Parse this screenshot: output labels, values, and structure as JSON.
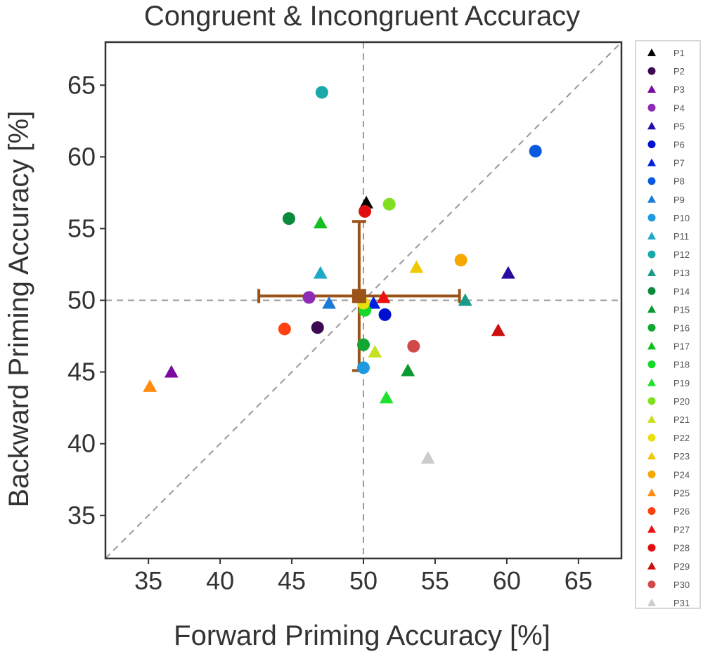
{
  "chart_data": {
    "type": "scatter",
    "title": "Congruent & Incongruent Accuracy",
    "xlabel": "Forward Priming Accuracy [%]",
    "ylabel": "Backward Priming Accuracy [%]",
    "xlim": [
      32,
      68
    ],
    "ylim": [
      32,
      68
    ],
    "xticks": [
      35,
      40,
      45,
      50,
      55,
      60,
      65
    ],
    "yticks": [
      35,
      40,
      45,
      50,
      55,
      60,
      65
    ],
    "grid": false,
    "reference_lines": {
      "vertical": 50,
      "horizontal": 50,
      "diagonal": true
    },
    "legend_position": "outside-right",
    "series": [
      {
        "name": "P1",
        "marker": "triangle",
        "color": "#000000",
        "x": 50.2,
        "y": 56.8
      },
      {
        "name": "P2",
        "marker": "circle",
        "color": "#3d0a52",
        "x": 46.8,
        "y": 48.1
      },
      {
        "name": "P3",
        "marker": "triangle",
        "color": "#7a0aa0",
        "x": 36.6,
        "y": 45.0
      },
      {
        "name": "P4",
        "marker": "circle",
        "color": "#8e2bb5",
        "x": 46.2,
        "y": 50.2
      },
      {
        "name": "P5",
        "marker": "triangle",
        "color": "#2a0aa0",
        "x": 60.1,
        "y": 51.9
      },
      {
        "name": "P6",
        "marker": "circle",
        "color": "#0010d0",
        "x": 51.5,
        "y": 49.0
      },
      {
        "name": "P7",
        "marker": "triangle",
        "color": "#0020e0",
        "x": 50.7,
        "y": 49.8
      },
      {
        "name": "P8",
        "marker": "circle",
        "color": "#0a5ae0",
        "x": 62.0,
        "y": 60.4
      },
      {
        "name": "P9",
        "marker": "triangle",
        "color": "#1a7ad8",
        "x": 47.6,
        "y": 49.8
      },
      {
        "name": "P10",
        "marker": "circle",
        "color": "#1f9ae0",
        "x": 50.0,
        "y": 45.3
      },
      {
        "name": "P11",
        "marker": "triangle",
        "color": "#20a8c8",
        "x": 47.0,
        "y": 51.9
      },
      {
        "name": "P12",
        "marker": "circle",
        "color": "#1aa8a8",
        "x": 47.1,
        "y": 64.5
      },
      {
        "name": "P13",
        "marker": "triangle",
        "color": "#1a9a88",
        "x": 57.1,
        "y": 50.0
      },
      {
        "name": "P14",
        "marker": "circle",
        "color": "#0a8a3a",
        "x": 44.8,
        "y": 55.7
      },
      {
        "name": "P15",
        "marker": "triangle",
        "color": "#0a9a30",
        "x": 53.1,
        "y": 45.1
      },
      {
        "name": "P16",
        "marker": "circle",
        "color": "#10a830",
        "x": 50.0,
        "y": 46.9
      },
      {
        "name": "P17",
        "marker": "triangle",
        "color": "#12c022",
        "x": 47.0,
        "y": 55.4
      },
      {
        "name": "P18",
        "marker": "circle",
        "color": "#16d828",
        "x": 50.1,
        "y": 49.3
      },
      {
        "name": "P19",
        "marker": "triangle",
        "color": "#20e030",
        "x": 51.6,
        "y": 43.2
      },
      {
        "name": "P20",
        "marker": "circle",
        "color": "#80e020",
        "x": 51.8,
        "y": 56.7
      },
      {
        "name": "P21",
        "marker": "triangle",
        "color": "#c8e020",
        "x": 50.8,
        "y": 46.4
      },
      {
        "name": "P22",
        "marker": "circle",
        "color": "#e8e010",
        "x": 50.0,
        "y": 49.8
      },
      {
        "name": "P23",
        "marker": "triangle",
        "color": "#f0c800",
        "x": 53.7,
        "y": 52.3
      },
      {
        "name": "P24",
        "marker": "circle",
        "color": "#f4a800",
        "x": 56.8,
        "y": 52.8
      },
      {
        "name": "P25",
        "marker": "triangle",
        "color": "#ff8c10",
        "x": 35.1,
        "y": 44.0
      },
      {
        "name": "P26",
        "marker": "circle",
        "color": "#ff4010",
        "x": 44.5,
        "y": 48.0
      },
      {
        "name": "P27",
        "marker": "triangle",
        "color": "#ee1010",
        "x": 51.4,
        "y": 50.2
      },
      {
        "name": "P28",
        "marker": "circle",
        "color": "#e01010",
        "x": 50.1,
        "y": 56.2
      },
      {
        "name": "P29",
        "marker": "triangle",
        "color": "#cc1010",
        "x": 59.4,
        "y": 47.9
      },
      {
        "name": "P30",
        "marker": "circle",
        "color": "#d04a4a",
        "x": 53.5,
        "y": 46.8
      },
      {
        "name": "P31",
        "marker": "triangle",
        "color": "#cccccc",
        "x": 54.5,
        "y": 39.0
      }
    ],
    "mean": {
      "marker": "square",
      "color": "#9a5218",
      "x": 49.7,
      "y": 50.3,
      "x_error": [
        42.7,
        56.7
      ],
      "y_error": [
        45.1,
        55.5
      ]
    }
  }
}
